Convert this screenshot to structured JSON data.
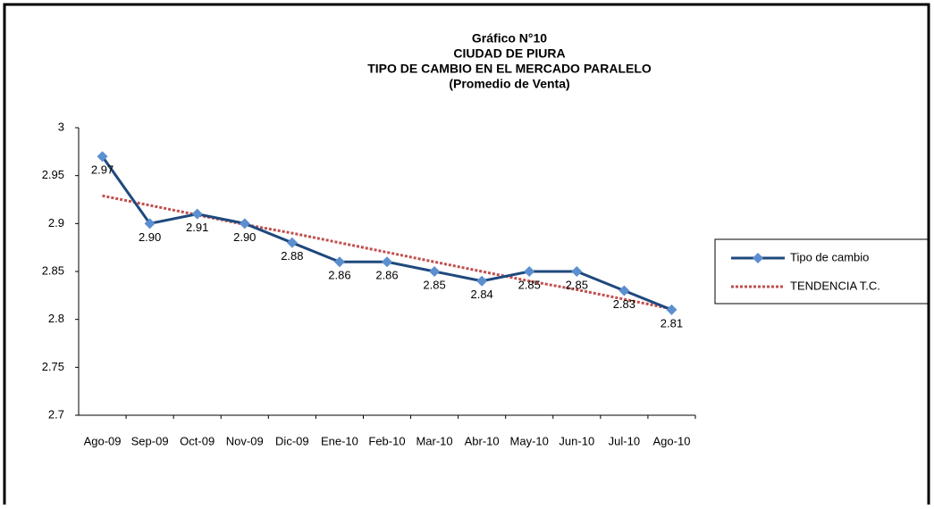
{
  "chart_data": {
    "type": "line",
    "title": [
      "Gráfico N°10",
      "CIUDAD DE PIURA",
      "TIPO DE CAMBIO EN EL MERCADO PARALELO",
      "(Promedio de Venta)"
    ],
    "categories": [
      "Ago-09",
      "Sep-09",
      "Oct-09",
      "Nov-09",
      "Dic-09",
      "Ene-10",
      "Feb-10",
      "Mar-10",
      "Abr-10",
      "May-10",
      "Jun-10",
      "Jul-10",
      "Ago-10"
    ],
    "series": [
      {
        "name": "Tipo de cambio",
        "color": "#1f497d",
        "marker_color": "#5b8fd0",
        "values": [
          2.97,
          2.9,
          2.91,
          2.9,
          2.88,
          2.86,
          2.86,
          2.85,
          2.84,
          2.85,
          2.85,
          2.83,
          2.81
        ],
        "value_labels": [
          "2.97",
          "2.90",
          "2.91",
          "2.90",
          "2.88",
          "2.86",
          "2.86",
          "2.85",
          "2.84",
          "2.85",
          "2.85",
          "2.83",
          "2.81"
        ]
      },
      {
        "name": "TENDENCIA T.C.",
        "color": "#c0504d",
        "dashed": true,
        "values": [
          2.929,
          2.919,
          2.909,
          2.899,
          2.89,
          2.88,
          2.87,
          2.86,
          2.85,
          2.84,
          2.831,
          2.821,
          2.811
        ]
      }
    ],
    "ylim": [
      2.7,
      3
    ],
    "yticks": [
      2.7,
      2.75,
      2.8,
      2.85,
      2.9,
      2.95,
      3
    ],
    "grid": false,
    "legend": "right"
  }
}
